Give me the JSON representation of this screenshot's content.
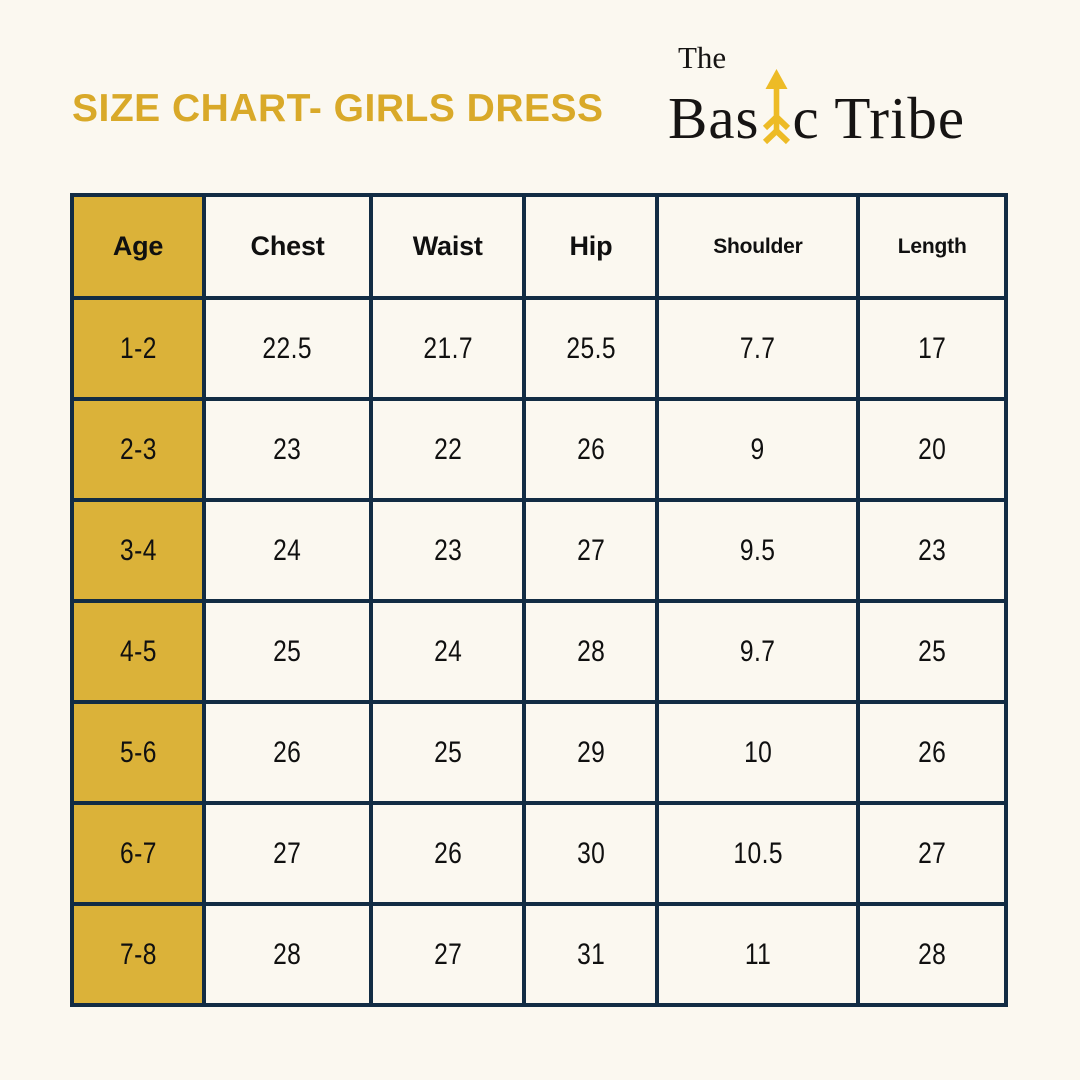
{
  "header": {
    "title": "SIZE CHART- GIRLS DRESS"
  },
  "logo": {
    "the": "The",
    "brand_part1": "Bas",
    "brand_part2": "c Tribe",
    "arrow_icon": "up-arrow",
    "arrow_color": "#EDBB26"
  },
  "chart_data": {
    "type": "table",
    "title": "SIZE CHART- GIRLS DRESS",
    "columns": [
      "Age",
      "Chest",
      "Waist",
      "Hip",
      "Shoulder",
      "Length"
    ],
    "rows": [
      [
        "1-2",
        "22.5",
        "21.7",
        "25.5",
        "7.7",
        "17"
      ],
      [
        "2-3",
        "23",
        "22",
        "26",
        "9",
        "20"
      ],
      [
        "3-4",
        "24",
        "23",
        "27",
        "9.5",
        "23"
      ],
      [
        "4-5",
        "25",
        "24",
        "28",
        "9.7",
        "25"
      ],
      [
        "5-6",
        "26",
        "25",
        "29",
        "10",
        "26"
      ],
      [
        "6-7",
        "27",
        "26",
        "30",
        "10.5",
        "27"
      ],
      [
        "7-8",
        "28",
        "27",
        "31",
        "11",
        "28"
      ]
    ],
    "highlight_column": "Age",
    "layout": {
      "grid": "on",
      "small_header_columns": [
        "Shoulder",
        "Length"
      ]
    }
  },
  "colors": {
    "background": "#FBF8F0",
    "title_gold": "#D9A929",
    "cell_gold": "#DBB239",
    "border_navy": "#122C44",
    "text_dark": "#101010"
  }
}
